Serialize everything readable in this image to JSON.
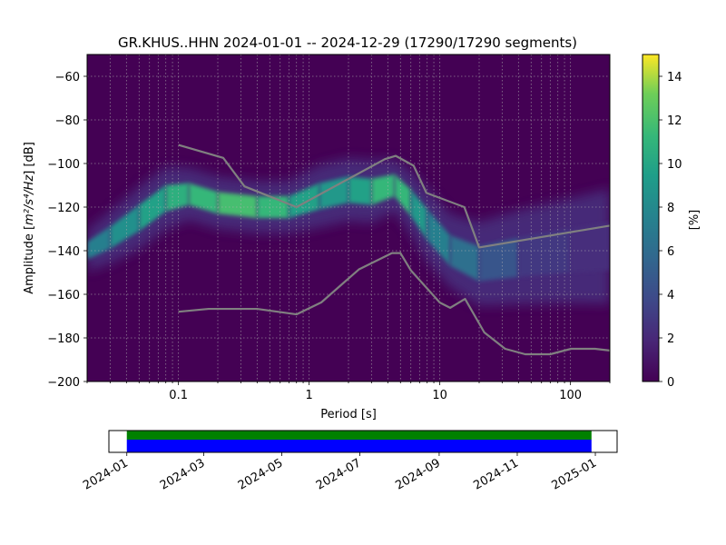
{
  "chart_data": [
    {
      "type": "heatmap",
      "title": "GR.KHUS..HHN   2024-01-01 -- 2024-12-29  (17290/17290 segments)",
      "xlabel": "Period [s]",
      "ylabel_prefix": "Amplitude [",
      "ylabel_math": "m²/s⁴/Hz",
      "ylabel_suffix": "] [dB]",
      "x_scale": "log",
      "xlim": [
        0.02,
        200
      ],
      "ylim": [
        -200,
        -50
      ],
      "x_ticks": [
        {
          "value": 0.1,
          "label": "0.1"
        },
        {
          "value": 1,
          "label": "1"
        },
        {
          "value": 10,
          "label": "10"
        },
        {
          "value": 100,
          "label": "100"
        }
      ],
      "y_ticks": [
        {
          "value": -60,
          "label": "−60"
        },
        {
          "value": -80,
          "label": "−80"
        },
        {
          "value": -100,
          "label": "−100"
        },
        {
          "value": -120,
          "label": "−120"
        },
        {
          "value": -140,
          "label": "−140"
        },
        {
          "value": -160,
          "label": "−160"
        },
        {
          "value": -180,
          "label": "−180"
        },
        {
          "value": -200,
          "label": "−200"
        }
      ],
      "grid": true,
      "colormap": "viridis",
      "background_color": "#440154",
      "colorbar": {
        "label": "[%]",
        "range": [
          0,
          15
        ],
        "ticks": [
          {
            "value": 0,
            "label": "0"
          },
          {
            "value": 2,
            "label": "2"
          },
          {
            "value": 4,
            "label": "4"
          },
          {
            "value": 6,
            "label": "6"
          },
          {
            "value": 8,
            "label": "8"
          },
          {
            "value": 10,
            "label": "10"
          },
          {
            "value": 12,
            "label": "12"
          },
          {
            "value": 14,
            "label": "14"
          }
        ]
      },
      "density_ridge": [
        {
          "period": 0.02,
          "db": -140,
          "width": 4,
          "intensity": 6
        },
        {
          "period": 0.03,
          "db": -134,
          "width": 5,
          "intensity": 7
        },
        {
          "period": 0.05,
          "db": -125,
          "width": 6,
          "intensity": 8
        },
        {
          "period": 0.08,
          "db": -116,
          "width": 6,
          "intensity": 9
        },
        {
          "period": 0.12,
          "db": -114,
          "width": 5,
          "intensity": 10
        },
        {
          "period": 0.2,
          "db": -118,
          "width": 5,
          "intensity": 10
        },
        {
          "period": 0.4,
          "db": -120,
          "width": 5,
          "intensity": 11
        },
        {
          "period": 0.7,
          "db": -120,
          "width": 5,
          "intensity": 9
        },
        {
          "period": 1.2,
          "db": -115,
          "width": 6,
          "intensity": 8
        },
        {
          "period": 2,
          "db": -112,
          "width": 6,
          "intensity": 8
        },
        {
          "period": 3,
          "db": -113,
          "width": 6,
          "intensity": 9
        },
        {
          "period": 4.5,
          "db": -110,
          "width": 5,
          "intensity": 11
        },
        {
          "period": 6,
          "db": -118,
          "width": 6,
          "intensity": 9
        },
        {
          "period": 8,
          "db": -128,
          "width": 7,
          "intensity": 7
        },
        {
          "period": 12,
          "db": -140,
          "width": 7,
          "intensity": 6
        },
        {
          "period": 20,
          "db": -146,
          "width": 8,
          "intensity": 5
        },
        {
          "period": 40,
          "db": -143,
          "width": 9,
          "intensity": 3
        },
        {
          "period": 100,
          "db": -140,
          "width": 10,
          "intensity": 2
        },
        {
          "period": 200,
          "db": -138,
          "width": 11,
          "intensity": 2
        }
      ],
      "series": [
        {
          "role": "high-noise-model",
          "color": "#808080",
          "points": [
            [
              0.1,
              -91.5
            ],
            [
              0.22,
              -97.4
            ],
            [
              0.32,
              -110.5
            ],
            [
              0.8,
              -120
            ],
            [
              3.8,
              -98
            ],
            [
              4.6,
              -96.5
            ],
            [
              6.3,
              -101
            ],
            [
              7.9,
              -113.5
            ],
            [
              15.4,
              -120
            ],
            [
              20,
              -138.5
            ],
            [
              200,
              -128.5
            ]
          ]
        },
        {
          "role": "low-noise-model",
          "color": "#808080",
          "points": [
            [
              0.1,
              -168
            ],
            [
              0.17,
              -166.7
            ],
            [
              0.4,
              -166.7
            ],
            [
              0.8,
              -169.2
            ],
            [
              1.24,
              -163.7
            ],
            [
              2.4,
              -148.6
            ],
            [
              4.3,
              -141.1
            ],
            [
              5,
              -141.1
            ],
            [
              6,
              -149
            ],
            [
              10,
              -163.8
            ],
            [
              12,
              -166.2
            ],
            [
              15.6,
              -162.1
            ],
            [
              21.9,
              -177.5
            ],
            [
              31.6,
              -185
            ],
            [
              45,
              -187.5
            ],
            [
              70,
              -187.5
            ],
            [
              101,
              -185
            ],
            [
              154,
              -185
            ],
            [
              200,
              -185.8
            ]
          ]
        }
      ]
    },
    {
      "type": "timeline",
      "x_ticks": [
        "2024-01",
        "2024-03",
        "2024-05",
        "2024-07",
        "2024-09",
        "2024-11",
        "2025-01"
      ],
      "axis_range": [
        "2023-12-18",
        "2025-01-18"
      ],
      "coverage": [
        {
          "start": "2024-01-01",
          "end": "2024-12-29",
          "color": "#0000ff"
        }
      ],
      "data_availability": [
        {
          "start": "2024-01-01",
          "end": "2024-12-29",
          "color": "#008000"
        }
      ]
    }
  ]
}
